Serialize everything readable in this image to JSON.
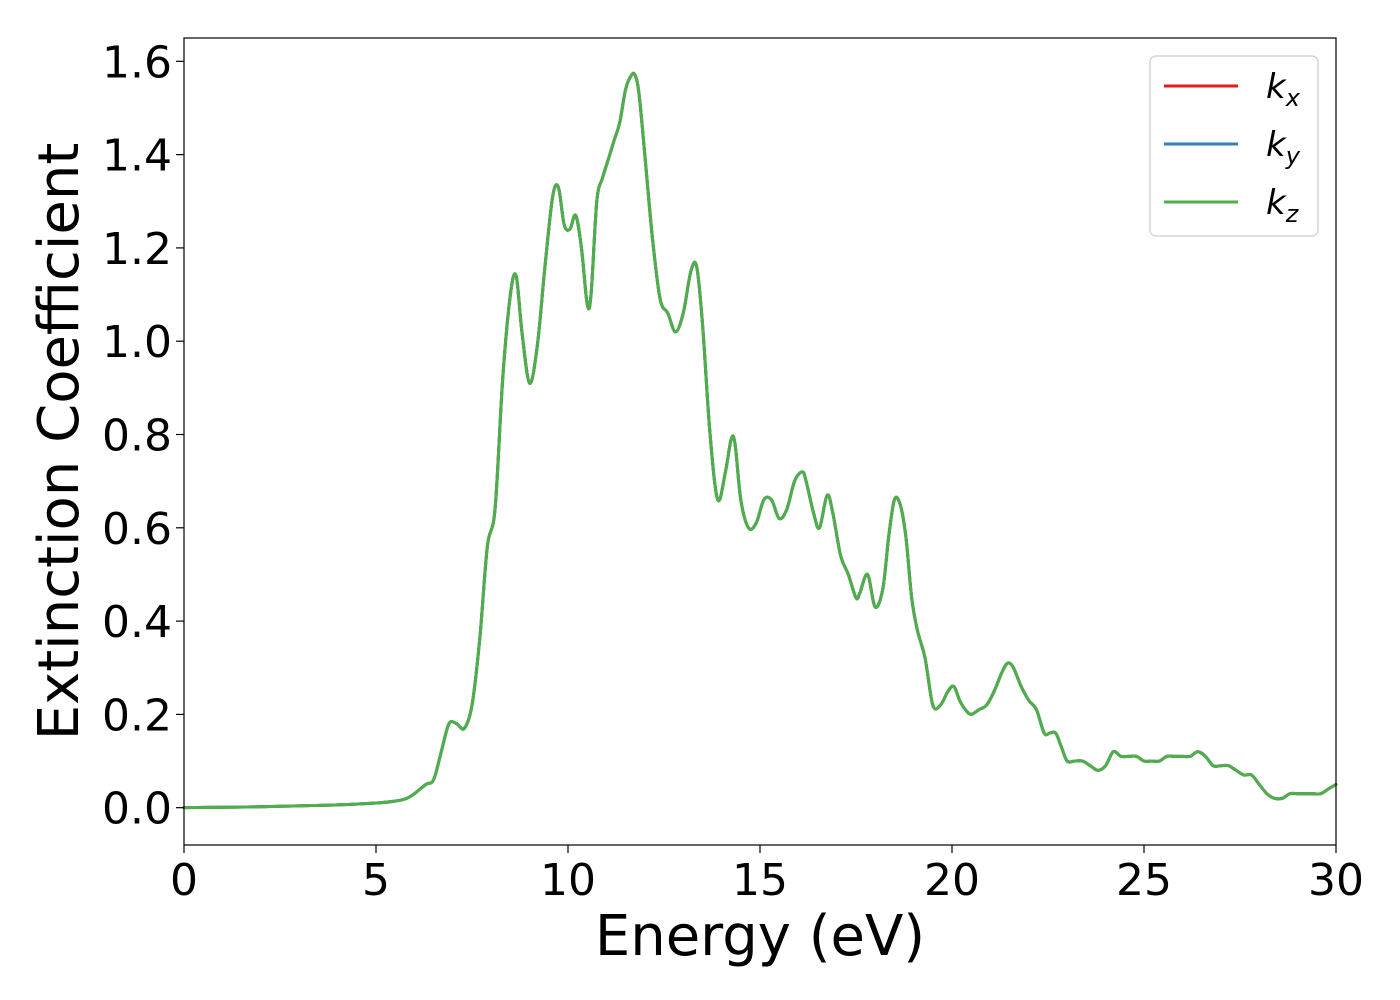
{
  "colors": {
    "kx": "#e41a1c",
    "ky": "#377eb8",
    "kz": "#4daf4a",
    "axis": "#000000",
    "legend_border": "#cccccc"
  },
  "chart_data": {
    "type": "line",
    "xlabel": "Energy (eV)",
    "ylabel": "Extinction Coefficient",
    "xlim": [
      0,
      30
    ],
    "ylim": [
      -0.08,
      1.65
    ],
    "xticks": [
      0,
      5,
      10,
      15,
      20,
      25,
      30
    ],
    "xtick_labels": [
      "0",
      "5",
      "10",
      "15",
      "20",
      "25",
      "30"
    ],
    "yticks": [
      0.0,
      0.2,
      0.4,
      0.6,
      0.8,
      1.0,
      1.2,
      1.4,
      1.6
    ],
    "ytick_labels": [
      "0.0",
      "0.2",
      "0.4",
      "0.6",
      "0.8",
      "1.0",
      "1.2",
      "1.4",
      "1.6"
    ],
    "grid": false,
    "legend_position": "top-right",
    "legend": [
      {
        "base": "k",
        "sub": "x",
        "color_key": "kx"
      },
      {
        "base": "k",
        "sub": "y",
        "color_key": "ky"
      },
      {
        "base": "k",
        "sub": "z",
        "color_key": "kz"
      }
    ],
    "x": [
      0,
      1,
      2,
      3,
      4,
      5,
      5.5,
      5.8,
      6.0,
      6.3,
      6.5,
      6.7,
      6.9,
      7.1,
      7.3,
      7.5,
      7.7,
      7.9,
      8.1,
      8.3,
      8.5,
      8.65,
      8.8,
      9.0,
      9.2,
      9.4,
      9.6,
      9.75,
      9.9,
      10.05,
      10.2,
      10.35,
      10.5,
      10.6,
      10.75,
      10.9,
      11.05,
      11.2,
      11.35,
      11.5,
      11.65,
      11.75,
      11.85,
      12.0,
      12.2,
      12.4,
      12.6,
      12.8,
      13.0,
      13.2,
      13.35,
      13.5,
      13.7,
      13.9,
      14.1,
      14.25,
      14.35,
      14.5,
      14.7,
      14.9,
      15.1,
      15.3,
      15.5,
      15.7,
      15.9,
      16.1,
      16.2,
      16.4,
      16.55,
      16.75,
      16.9,
      17.1,
      17.3,
      17.5,
      17.6,
      17.8,
      18.0,
      18.2,
      18.35,
      18.5,
      18.65,
      18.8,
      18.95,
      19.1,
      19.3,
      19.5,
      19.7,
      19.9,
      20.05,
      20.2,
      20.35,
      20.5,
      20.7,
      20.9,
      21.1,
      21.3,
      21.45,
      21.6,
      21.8,
      22.0,
      22.2,
      22.4,
      22.55,
      22.7,
      22.85,
      23.0,
      23.2,
      23.4,
      23.6,
      23.8,
      24.0,
      24.2,
      24.4,
      24.6,
      24.8,
      25.0,
      25.2,
      25.4,
      25.6,
      25.8,
      26.0,
      26.2,
      26.4,
      26.6,
      26.8,
      27.0,
      27.2,
      27.4,
      27.6,
      27.8,
      28.0,
      28.2,
      28.4,
      28.6,
      28.8,
      29.0,
      29.2,
      29.4,
      29.6,
      29.8,
      30.0
    ],
    "series": [
      {
        "name": "k_x",
        "color_key": "kx",
        "values": [
          0.0,
          0.001,
          0.002,
          0.004,
          0.006,
          0.01,
          0.014,
          0.02,
          0.03,
          0.05,
          0.06,
          0.12,
          0.18,
          0.18,
          0.17,
          0.22,
          0.36,
          0.56,
          0.64,
          0.92,
          1.1,
          1.14,
          1.02,
          0.91,
          0.99,
          1.16,
          1.31,
          1.33,
          1.25,
          1.24,
          1.27,
          1.2,
          1.08,
          1.1,
          1.3,
          1.35,
          1.39,
          1.43,
          1.47,
          1.54,
          1.57,
          1.57,
          1.53,
          1.4,
          1.22,
          1.09,
          1.06,
          1.02,
          1.06,
          1.15,
          1.16,
          1.04,
          0.8,
          0.66,
          0.72,
          0.79,
          0.78,
          0.66,
          0.6,
          0.61,
          0.66,
          0.66,
          0.62,
          0.64,
          0.7,
          0.72,
          0.7,
          0.63,
          0.6,
          0.67,
          0.63,
          0.54,
          0.5,
          0.45,
          0.46,
          0.5,
          0.43,
          0.47,
          0.58,
          0.66,
          0.65,
          0.58,
          0.45,
          0.38,
          0.32,
          0.22,
          0.22,
          0.25,
          0.26,
          0.23,
          0.21,
          0.2,
          0.21,
          0.22,
          0.25,
          0.29,
          0.31,
          0.3,
          0.26,
          0.23,
          0.21,
          0.16,
          0.16,
          0.16,
          0.13,
          0.1,
          0.1,
          0.1,
          0.09,
          0.08,
          0.09,
          0.12,
          0.11,
          0.11,
          0.11,
          0.1,
          0.1,
          0.1,
          0.11,
          0.11,
          0.11,
          0.11,
          0.12,
          0.11,
          0.09,
          0.09,
          0.09,
          0.08,
          0.07,
          0.07,
          0.05,
          0.03,
          0.02,
          0.02,
          0.03,
          0.03,
          0.03,
          0.03,
          0.03,
          0.04,
          0.05
        ]
      },
      {
        "name": "k_y",
        "color_key": "ky",
        "values": [
          0.0,
          0.001,
          0.002,
          0.004,
          0.006,
          0.01,
          0.014,
          0.02,
          0.03,
          0.05,
          0.06,
          0.12,
          0.18,
          0.18,
          0.17,
          0.22,
          0.36,
          0.56,
          0.64,
          0.92,
          1.1,
          1.14,
          1.02,
          0.91,
          0.99,
          1.16,
          1.31,
          1.33,
          1.25,
          1.24,
          1.27,
          1.2,
          1.08,
          1.1,
          1.3,
          1.35,
          1.39,
          1.43,
          1.47,
          1.54,
          1.57,
          1.57,
          1.53,
          1.4,
          1.22,
          1.09,
          1.06,
          1.02,
          1.06,
          1.15,
          1.16,
          1.04,
          0.8,
          0.66,
          0.72,
          0.79,
          0.78,
          0.66,
          0.6,
          0.61,
          0.66,
          0.66,
          0.62,
          0.64,
          0.7,
          0.72,
          0.7,
          0.63,
          0.6,
          0.67,
          0.63,
          0.54,
          0.5,
          0.45,
          0.46,
          0.5,
          0.43,
          0.47,
          0.58,
          0.66,
          0.65,
          0.58,
          0.45,
          0.38,
          0.32,
          0.22,
          0.22,
          0.25,
          0.26,
          0.23,
          0.21,
          0.2,
          0.21,
          0.22,
          0.25,
          0.29,
          0.31,
          0.3,
          0.26,
          0.23,
          0.21,
          0.16,
          0.16,
          0.16,
          0.13,
          0.1,
          0.1,
          0.1,
          0.09,
          0.08,
          0.09,
          0.12,
          0.11,
          0.11,
          0.11,
          0.1,
          0.1,
          0.1,
          0.11,
          0.11,
          0.11,
          0.11,
          0.12,
          0.11,
          0.09,
          0.09,
          0.09,
          0.08,
          0.07,
          0.07,
          0.05,
          0.03,
          0.02,
          0.02,
          0.03,
          0.03,
          0.03,
          0.03,
          0.03,
          0.04,
          0.05
        ]
      },
      {
        "name": "k_z",
        "color_key": "kz",
        "values": [
          0.0,
          0.001,
          0.002,
          0.004,
          0.006,
          0.01,
          0.014,
          0.02,
          0.03,
          0.05,
          0.06,
          0.12,
          0.18,
          0.18,
          0.17,
          0.22,
          0.36,
          0.56,
          0.64,
          0.92,
          1.1,
          1.14,
          1.02,
          0.91,
          0.99,
          1.16,
          1.31,
          1.33,
          1.25,
          1.24,
          1.27,
          1.2,
          1.08,
          1.1,
          1.3,
          1.35,
          1.39,
          1.43,
          1.47,
          1.54,
          1.57,
          1.57,
          1.53,
          1.4,
          1.22,
          1.09,
          1.06,
          1.02,
          1.06,
          1.15,
          1.16,
          1.04,
          0.8,
          0.66,
          0.72,
          0.79,
          0.78,
          0.66,
          0.6,
          0.61,
          0.66,
          0.66,
          0.62,
          0.64,
          0.7,
          0.72,
          0.7,
          0.63,
          0.6,
          0.67,
          0.63,
          0.54,
          0.5,
          0.45,
          0.46,
          0.5,
          0.43,
          0.47,
          0.58,
          0.66,
          0.65,
          0.58,
          0.45,
          0.38,
          0.32,
          0.22,
          0.22,
          0.25,
          0.26,
          0.23,
          0.21,
          0.2,
          0.21,
          0.22,
          0.25,
          0.29,
          0.31,
          0.3,
          0.26,
          0.23,
          0.21,
          0.16,
          0.16,
          0.16,
          0.13,
          0.1,
          0.1,
          0.1,
          0.09,
          0.08,
          0.09,
          0.12,
          0.11,
          0.11,
          0.11,
          0.1,
          0.1,
          0.1,
          0.11,
          0.11,
          0.11,
          0.11,
          0.12,
          0.11,
          0.09,
          0.09,
          0.09,
          0.08,
          0.07,
          0.07,
          0.05,
          0.03,
          0.02,
          0.02,
          0.03,
          0.03,
          0.03,
          0.03,
          0.03,
          0.04,
          0.05
        ]
      }
    ]
  }
}
